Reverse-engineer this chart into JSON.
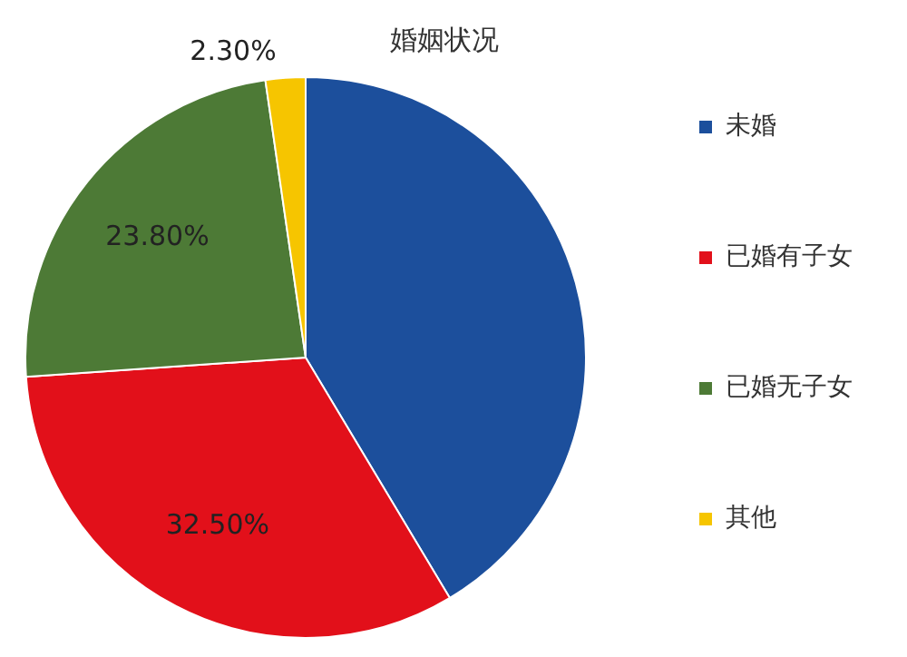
{
  "chart_data": {
    "type": "pie",
    "title": "婚姻状况",
    "categories": [
      "未婚",
      "已婚有子女",
      "已婚无子女",
      "其他"
    ],
    "values": [
      41.4,
      32.5,
      23.8,
      2.3
    ],
    "value_labels": [
      null,
      "32.50%",
      "23.80%",
      "2.30%"
    ],
    "colors": [
      "#1c4f9c",
      "#e2101a",
      "#4d7a36",
      "#f6c500"
    ],
    "legend": "right"
  }
}
